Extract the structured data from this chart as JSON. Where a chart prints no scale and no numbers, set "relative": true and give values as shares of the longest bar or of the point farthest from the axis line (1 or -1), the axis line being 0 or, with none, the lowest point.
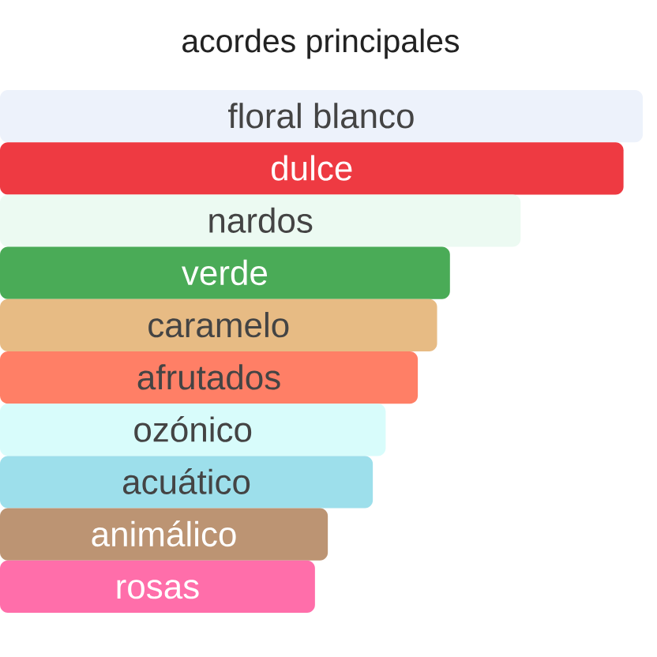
{
  "chart_data": {
    "type": "bar",
    "orientation": "horizontal",
    "relative": true,
    "title": "acordes principales",
    "categories": [
      "floral blanco",
      "dulce",
      "nardos",
      "verde",
      "caramelo",
      "afrutados",
      "ozónico",
      "acuático",
      "animálico",
      "rosas"
    ],
    "values": [
      1,
      0.97,
      0.81,
      0.7,
      0.68,
      0.65,
      0.6,
      0.58,
      0.51,
      0.49
    ],
    "colors": [
      "#edf2fb",
      "#ee3a42",
      "#ecfaf2",
      "#4aab57",
      "#e7bb84",
      "#ff7f66",
      "#d8fcfb",
      "#9ddfeb",
      "#bc9473",
      "#ff6eaa"
    ]
  }
}
